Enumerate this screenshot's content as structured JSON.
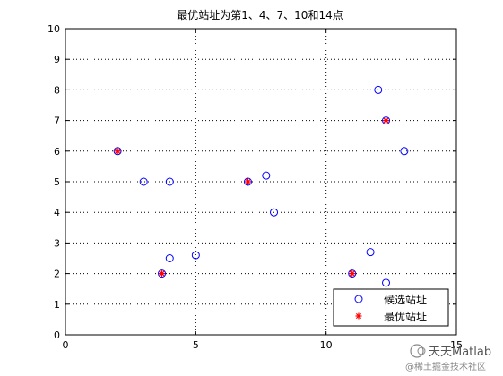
{
  "chart_data": {
    "type": "scatter",
    "title": "最优站址为第1、4、7、10和14点",
    "xlabel": "",
    "ylabel": "",
    "xlim": [
      0,
      15
    ],
    "ylim": [
      0,
      10
    ],
    "xticks": [
      0,
      5,
      10,
      15
    ],
    "yticks": [
      0,
      1,
      2,
      3,
      4,
      5,
      6,
      7,
      8,
      9,
      10
    ],
    "grid": true,
    "legend_position": "bottom-right",
    "series": [
      {
        "name": "候选站址",
        "marker": "circle",
        "color": "#0000ff",
        "points": [
          [
            2.0,
            6.0
          ],
          [
            3.0,
            5.0
          ],
          [
            3.7,
            2.0
          ],
          [
            4.0,
            5.0
          ],
          [
            4.0,
            2.5
          ],
          [
            5.0,
            2.6
          ],
          [
            7.0,
            5.0
          ],
          [
            7.7,
            5.2
          ],
          [
            8.0,
            4.0
          ],
          [
            11.0,
            2.0
          ],
          [
            11.7,
            2.7
          ],
          [
            12.0,
            8.0
          ],
          [
            12.3,
            7.0
          ],
          [
            12.3,
            1.7
          ],
          [
            13.0,
            6.0
          ]
        ]
      },
      {
        "name": "最优站址",
        "marker": "asterisk",
        "color": "#ff0000",
        "points": [
          [
            2.0,
            6.0
          ],
          [
            3.7,
            2.0
          ],
          [
            7.0,
            5.0
          ],
          [
            11.0,
            2.0
          ],
          [
            12.3,
            7.0
          ]
        ]
      }
    ]
  },
  "watermark": {
    "brand": "天天Matlab",
    "credit": "@稀土掘金技术社区"
  }
}
